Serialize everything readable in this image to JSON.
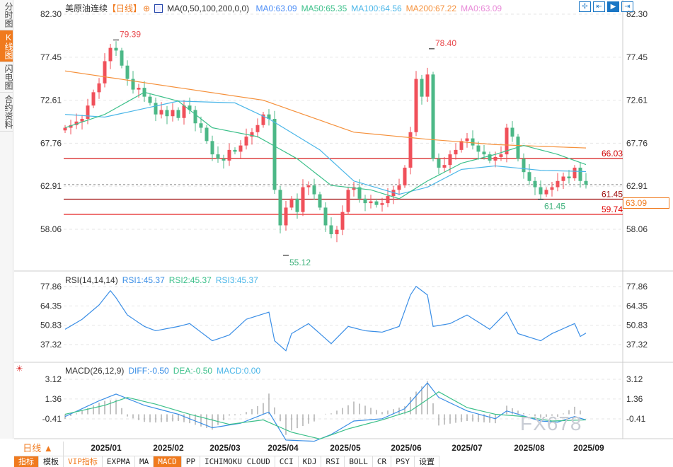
{
  "sidebar": {
    "tabs": [
      {
        "label": "分时图",
        "active": false
      },
      {
        "label": "K线图",
        "active": true
      },
      {
        "label": "闪电图",
        "active": false
      },
      {
        "label": "合约资料",
        "active": false
      }
    ]
  },
  "header": {
    "symbol": "美原油连续",
    "period_tag": "【日线】",
    "ma_params": "MA(0,50,100,200,0,0)",
    "ma_values": [
      {
        "label": "MA0:63.09",
        "color": "#4c8df6"
      },
      {
        "label": "MA50:65.35",
        "color": "#3cc08a"
      },
      {
        "label": "MA100:64.56",
        "color": "#4ab6e8"
      },
      {
        "label": "MA200:67.22",
        "color": "#f5913c"
      },
      {
        "label": "MA0:63.09",
        "color": "#e88ad8"
      }
    ]
  },
  "toolbar": {
    "tools": [
      {
        "icon": "crosshair-icon",
        "active": false
      },
      {
        "icon": "fit-range-icon",
        "active": false
      },
      {
        "icon": "zoom-right-icon",
        "active": true
      },
      {
        "icon": "scroll-end-icon",
        "active": false
      }
    ]
  },
  "colors": {
    "up": "#f0505a",
    "down": "#4cb887",
    "accent": "#f07a1e",
    "ma50": "#3cc08a",
    "ma100": "#4ab6e8",
    "ma200": "#f5913c",
    "diff": "#3a8ee6",
    "dea": "#3cc08a"
  },
  "chart_data": [
    {
      "type": "candlestick",
      "name": "price",
      "ylim": [
        55.12,
        82.3
      ],
      "yticks": [
        "82.30",
        "77.45",
        "72.61",
        "67.76",
        "62.91",
        "58.06"
      ],
      "x_ticks": [
        "2025/01",
        "2025/02",
        "2025/03",
        "2025/04",
        "2025/05",
        "2025/06",
        "2025/07",
        "2025/08",
        "2025/09"
      ],
      "closes": [
        69.5,
        69.8,
        70.2,
        70.5,
        72,
        73.5,
        74.5,
        77,
        78.5,
        78.2,
        76.5,
        75,
        73.8,
        74,
        73,
        72.3,
        71,
        71.5,
        70.8,
        71.5,
        70.6,
        72,
        71.5,
        70,
        69.5,
        68,
        66.5,
        66,
        65.8,
        67,
        66.8,
        67.5,
        68.5,
        69,
        69.8,
        71,
        70.5,
        62.5,
        58.5,
        60.5,
        61.5,
        60,
        62.8,
        63,
        62,
        60.5,
        58.5,
        57.5,
        58,
        60,
        62.5,
        62.8,
        61.5,
        61,
        61.2,
        60.8,
        61,
        61.8,
        62.5,
        63,
        65,
        69,
        75,
        73,
        75.5,
        66,
        65,
        65.3,
        66.5,
        67,
        68,
        68.3,
        67.5,
        66.8,
        66.5,
        65.8,
        66.2,
        66.5,
        69.5,
        68.5,
        66,
        64.5,
        63.5,
        62.8,
        62,
        62.5,
        62.8,
        63.5,
        64,
        63.8,
        65,
        63.5,
        63.09
      ],
      "ma50": [
        [
          0,
          69.5
        ],
        [
          7,
          71
        ],
        [
          14,
          73.5
        ],
        [
          20,
          72.5
        ],
        [
          26,
          69.5
        ],
        [
          34,
          68.5
        ],
        [
          41,
          66
        ],
        [
          47,
          63
        ],
        [
          54,
          62.5
        ],
        [
          59,
          61.5
        ],
        [
          64,
          63.5
        ],
        [
          70,
          65.5
        ],
        [
          76,
          66.5
        ],
        [
          81,
          67.5
        ],
        [
          87,
          66.5
        ],
        [
          92,
          65.35
        ]
      ],
      "ma100": [
        [
          0,
          71
        ],
        [
          7,
          70.7
        ],
        [
          20,
          72.5
        ],
        [
          30,
          72.3
        ],
        [
          36,
          70.5
        ],
        [
          45,
          67
        ],
        [
          51,
          63.5
        ],
        [
          59,
          62
        ],
        [
          64,
          62.8
        ],
        [
          70,
          64.8
        ],
        [
          76,
          65.2
        ],
        [
          84,
          64.7
        ],
        [
          92,
          64.56
        ]
      ],
      "ma200": [
        [
          0,
          75.9
        ],
        [
          35,
          72.6
        ],
        [
          51,
          69
        ],
        [
          64,
          68.2
        ],
        [
          76,
          67.6
        ],
        [
          92,
          67.22
        ]
      ],
      "annotations": [
        {
          "label": "79.39",
          "kind": "high"
        },
        {
          "label": "78.40",
          "kind": "high"
        },
        {
          "label": "55.12",
          "kind": "low"
        },
        {
          "label": "61.45",
          "kind": "low"
        }
      ],
      "hlines": [
        {
          "value": 66.03,
          "label": "66.03",
          "color": "#d00000"
        },
        {
          "value": 61.45,
          "label": "61.45",
          "color": "#a01010"
        },
        {
          "value": 59.74,
          "label": "59.74",
          "color": "#e00000"
        }
      ],
      "last_price": "63.09"
    },
    {
      "type": "line",
      "name": "RSI",
      "legend": "RSI(14,14,14)",
      "series_labels": [
        {
          "label": "RSI1:45.37",
          "color": "#3a8ee6"
        },
        {
          "label": "RSI2:45.37",
          "color": "#3cc08a"
        },
        {
          "label": "RSI3:45.37",
          "color": "#4ab6e8"
        }
      ],
      "yticks": [
        "77.86",
        "64.35",
        "50.83",
        "37.32"
      ],
      "values": [
        [
          0,
          48
        ],
        [
          3,
          55
        ],
        [
          6,
          65
        ],
        [
          8,
          75
        ],
        [
          9,
          70
        ],
        [
          11,
          58
        ],
        [
          14,
          50
        ],
        [
          16,
          47
        ],
        [
          20,
          50
        ],
        [
          22,
          52
        ],
        [
          26,
          40
        ],
        [
          29,
          44
        ],
        [
          32,
          55
        ],
        [
          36,
          60
        ],
        [
          37,
          40
        ],
        [
          39,
          33
        ],
        [
          40,
          45
        ],
        [
          43,
          52
        ],
        [
          47,
          38
        ],
        [
          50,
          50
        ],
        [
          53,
          47
        ],
        [
          56,
          46
        ],
        [
          59,
          50
        ],
        [
          61,
          72
        ],
        [
          62,
          78
        ],
        [
          64,
          72
        ],
        [
          65,
          50
        ],
        [
          68,
          52
        ],
        [
          71,
          58
        ],
        [
          75,
          48
        ],
        [
          78,
          60
        ],
        [
          80,
          45
        ],
        [
          84,
          40
        ],
        [
          86,
          45
        ],
        [
          90,
          52
        ],
        [
          91,
          43
        ],
        [
          92,
          45.37
        ]
      ]
    },
    {
      "type": "macd",
      "legend": "MACD(26,12,9)",
      "series_labels": [
        {
          "label": "DIFF:-0.50",
          "color": "#3a8ee6"
        },
        {
          "label": "DEA:-0.50",
          "color": "#3cc08a"
        },
        {
          "label": "MACD:0.00",
          "color": "#4ab6e8"
        }
      ],
      "yticks": [
        "3.12",
        "1.36",
        "-0.41"
      ],
      "diff": [
        [
          0,
          -0.2
        ],
        [
          6,
          1.2
        ],
        [
          9,
          1.8
        ],
        [
          14,
          0.8
        ],
        [
          20,
          0
        ],
        [
          26,
          -1.2
        ],
        [
          31,
          -0.8
        ],
        [
          36,
          0.2
        ],
        [
          39,
          -2.3
        ],
        [
          44,
          -2.4
        ],
        [
          47,
          -1.8
        ],
        [
          51,
          -0.6
        ],
        [
          56,
          -0.4
        ],
        [
          60,
          0.5
        ],
        [
          64,
          2.8
        ],
        [
          66,
          1.5
        ],
        [
          71,
          0.3
        ],
        [
          76,
          -0.4
        ],
        [
          78,
          0.3
        ],
        [
          84,
          -0.6
        ],
        [
          87,
          -0.7
        ],
        [
          90,
          -0.2
        ],
        [
          92,
          -0.5
        ]
      ],
      "dea": [
        [
          0,
          0
        ],
        [
          7,
          0.8
        ],
        [
          11,
          1.5
        ],
        [
          16,
          0.9
        ],
        [
          22,
          0
        ],
        [
          29,
          -0.9
        ],
        [
          35,
          -0.5
        ],
        [
          40,
          -1.6
        ],
        [
          45,
          -2.2
        ],
        [
          50,
          -1.3
        ],
        [
          56,
          -0.5
        ],
        [
          61,
          0.3
        ],
        [
          66,
          2.0
        ],
        [
          71,
          0.6
        ],
        [
          76,
          0
        ],
        [
          81,
          -0.2
        ],
        [
          86,
          -0.6
        ],
        [
          92,
          -0.5
        ]
      ]
    }
  ],
  "period_selector": {
    "label": "日线 ▲"
  },
  "bottom_tabs": [
    {
      "label": "指标",
      "active": true
    },
    {
      "label": "模板"
    },
    {
      "label": "VIP指标",
      "vip": true
    },
    {
      "label": "EXPMA"
    },
    {
      "label": "MA"
    },
    {
      "label": "MACD",
      "active": true
    },
    {
      "label": "PP"
    },
    {
      "label": "ICHIMOKU CLOUD"
    },
    {
      "label": "CCI"
    },
    {
      "label": "KDJ"
    },
    {
      "label": "RSI"
    },
    {
      "label": "BOLL"
    },
    {
      "label": "CR"
    },
    {
      "label": "PSY"
    },
    {
      "label": "设置"
    }
  ],
  "watermark": "FX678"
}
